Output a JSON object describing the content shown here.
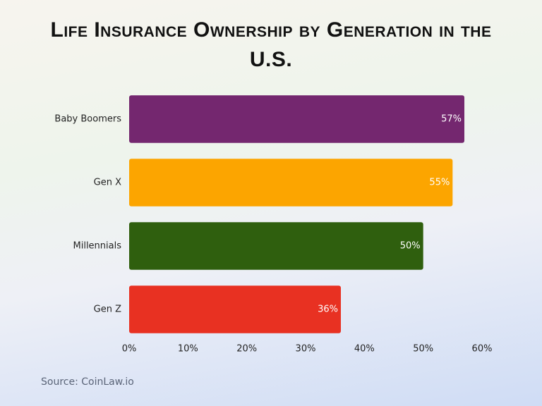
{
  "chart_data": {
    "type": "hbar",
    "title": "Life Insurance Ownership by Generation in the U.S.",
    "categories": [
      "Baby Boomers",
      "Gen X",
      "Millennials",
      "Gen Z"
    ],
    "values": [
      57,
      55,
      50,
      36
    ],
    "value_labels": [
      "57%",
      "55%",
      "50%",
      "36%"
    ],
    "colors": [
      "#74276f",
      "#fca500",
      "#2f5f0e",
      "#e83122"
    ],
    "xlim": [
      0,
      60
    ],
    "xticks": [
      {
        "value": 0,
        "label": "0%"
      },
      {
        "value": 10,
        "label": "10%"
      },
      {
        "value": 20,
        "label": "20%"
      },
      {
        "value": 30,
        "label": "30%"
      },
      {
        "value": 40,
        "label": "40%"
      },
      {
        "value": 50,
        "label": "50%"
      },
      {
        "value": 60,
        "label": "60%"
      }
    ],
    "source": "Source: CoinLaw.io"
  }
}
